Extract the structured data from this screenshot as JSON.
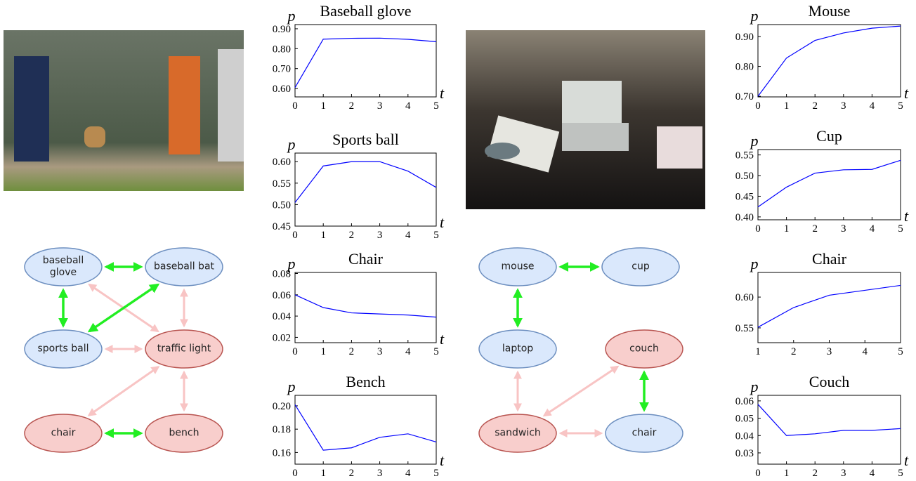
{
  "chart_data": [
    {
      "type": "line",
      "title": "Baseball glove",
      "y_label": "p",
      "x_label": "t",
      "x": [
        0,
        1,
        2,
        3,
        4,
        5
      ],
      "values": [
        0.605,
        0.848,
        0.852,
        0.853,
        0.847,
        0.835
      ],
      "color": "#0000ff",
      "xlim": [
        0,
        5
      ],
      "ylim": [
        0.558,
        0.921
      ],
      "xticks": [
        0,
        1,
        2,
        3,
        4,
        5
      ],
      "yticks": [
        {
          "value": 0.6,
          "label": "0.60"
        },
        {
          "value": 0.7,
          "label": "0.70"
        },
        {
          "value": 0.8,
          "label": "0.80"
        },
        {
          "value": 0.9,
          "label": "0.90"
        }
      ]
    },
    {
      "type": "line",
      "title": "Sports ball",
      "y_label": "p",
      "x_label": "t",
      "x": [
        0,
        1,
        2,
        3,
        4,
        5
      ],
      "values": [
        0.505,
        0.59,
        0.6,
        0.6,
        0.578,
        0.54
      ],
      "color": "#0000ff",
      "xlim": [
        0,
        5
      ],
      "ylim": [
        0.45,
        0.62
      ],
      "xticks": [
        0,
        1,
        2,
        3,
        4,
        5
      ],
      "yticks": [
        0.45,
        {
          "value": 0.5,
          "label": "0.50"
        },
        0.55,
        {
          "value": 0.6,
          "label": "0.60"
        }
      ]
    },
    {
      "type": "line",
      "title": "Chair",
      "y_label": "p",
      "x_label": "t",
      "x": [
        0,
        1,
        2,
        3,
        4,
        5
      ],
      "values": [
        0.06,
        0.048,
        0.043,
        0.042,
        0.041,
        0.039
      ],
      "color": "#0000ff",
      "xlim": [
        0,
        5
      ],
      "ylim": [
        0.015,
        0.081
      ],
      "xticks": [
        0,
        1,
        2,
        3,
        4,
        5
      ],
      "yticks": [
        0.02,
        0.04,
        0.06,
        0.08
      ]
    },
    {
      "type": "line",
      "title": "Bench",
      "y_label": "p",
      "x_label": "t",
      "x": [
        0,
        1,
        2,
        3,
        4,
        5
      ],
      "values": [
        0.201,
        0.162,
        0.164,
        0.173,
        0.176,
        0.169
      ],
      "color": "#0000ff",
      "xlim": [
        0,
        5
      ],
      "ylim": [
        0.15,
        0.209
      ],
      "xticks": [
        0,
        1,
        2,
        3,
        4,
        5
      ],
      "yticks": [
        0.16,
        0.18,
        {
          "value": 0.2,
          "label": "0.20"
        }
      ]
    },
    {
      "type": "line",
      "title": "Mouse",
      "y_label": "p",
      "x_label": "t",
      "x": [
        0,
        1,
        2,
        3,
        4,
        5
      ],
      "values": [
        0.7,
        0.828,
        0.887,
        0.912,
        0.928,
        0.935
      ],
      "color": "#0000ff",
      "xlim": [
        0,
        5
      ],
      "ylim": [
        0.698,
        0.94
      ],
      "xticks": [
        0,
        1,
        2,
        3,
        4,
        5
      ],
      "yticks": [
        {
          "value": 0.7,
          "label": "0.70"
        },
        {
          "value": 0.8,
          "label": "0.80"
        },
        {
          "value": 0.9,
          "label": "0.90"
        }
      ]
    },
    {
      "type": "line",
      "title": "Cup",
      "y_label": "p",
      "x_label": "t",
      "x": [
        0,
        1,
        2,
        3,
        4,
        5
      ],
      "values": [
        0.424,
        0.472,
        0.506,
        0.514,
        0.515,
        0.537
      ],
      "color": "#0000ff",
      "xlim": [
        0,
        5
      ],
      "ylim": [
        0.393,
        0.563
      ],
      "xticks": [
        0,
        1,
        2,
        3,
        4,
        5
      ],
      "yticks": [
        {
          "value": 0.4,
          "label": "0.40"
        },
        0.45,
        {
          "value": 0.5,
          "label": "0.50"
        },
        0.55
      ]
    },
    {
      "type": "line",
      "title": "Chair",
      "y_label": "p",
      "x": [
        1,
        2,
        3,
        4,
        5
      ],
      "values": [
        0.551,
        0.583,
        0.603,
        0.611,
        0.619
      ],
      "color": "#0000ff",
      "xlim": [
        1,
        5
      ],
      "ylim": [
        0.526,
        0.64
      ],
      "xticks": [
        1,
        2,
        3,
        4,
        5
      ],
      "yticks": [
        0.55,
        {
          "value": 0.6,
          "label": "0.60"
        }
      ]
    },
    {
      "type": "line",
      "title": "Couch",
      "y_label": "p",
      "x_label": "t",
      "x": [
        0,
        1,
        2,
        3,
        4,
        5
      ],
      "values": [
        0.058,
        0.04,
        0.041,
        0.043,
        0.043,
        0.044
      ],
      "color": "#0000ff",
      "xlim": [
        0,
        5
      ],
      "ylim": [
        0.0235,
        0.0632
      ],
      "xticks": [
        0,
        1,
        2,
        3,
        4,
        5
      ],
      "yticks": [
        0.03,
        0.04,
        0.05,
        0.06
      ]
    }
  ],
  "diagrams": [
    {
      "nodes": [
        {
          "label": "baseball glove"
        },
        {
          "label": "baseball bat"
        },
        {
          "label": "sports ball"
        },
        {
          "label": "traffic light"
        },
        {
          "label": "chair"
        },
        {
          "label": "bench"
        }
      ]
    },
    {
      "nodes": [
        {
          "label": "mouse"
        },
        {
          "label": "cup"
        },
        {
          "label": "laptop"
        },
        {
          "label": "couch"
        },
        {
          "label": "sandwich"
        },
        {
          "label": "chair"
        }
      ]
    }
  ]
}
